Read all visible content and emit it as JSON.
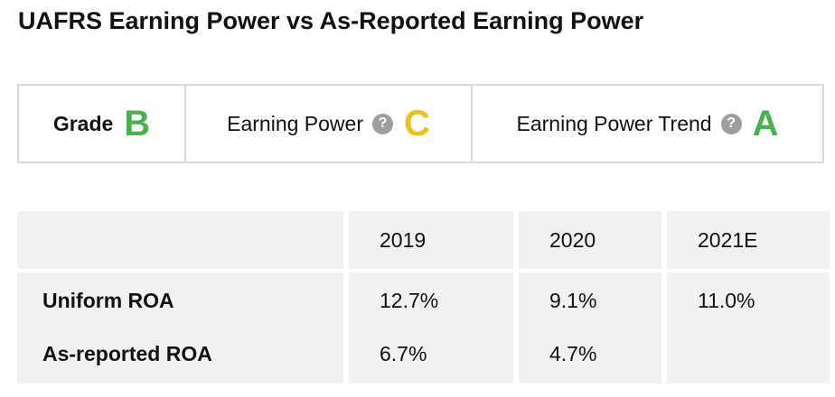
{
  "title": "UAFRS Earning Power vs As-Reported Earning Power",
  "grades": {
    "overall": {
      "label": "Grade",
      "grade": "B",
      "color": "#4caf50"
    },
    "earning_power": {
      "label": "Earning Power",
      "help_icon": "?",
      "grade": "C",
      "color": "#e8c31d"
    },
    "earning_power_trend": {
      "label": "Earning Power Trend",
      "help_icon": "?",
      "grade": "A",
      "color": "#4caf50"
    }
  },
  "table": {
    "columns": [
      "2019",
      "2020",
      "2021E"
    ],
    "rows": [
      {
        "label": "Uniform ROA",
        "values": [
          "12.7%",
          "9.1%",
          "11.0%"
        ]
      },
      {
        "label": "As-reported ROA",
        "values": [
          "6.7%",
          "4.7%",
          ""
        ]
      }
    ]
  }
}
